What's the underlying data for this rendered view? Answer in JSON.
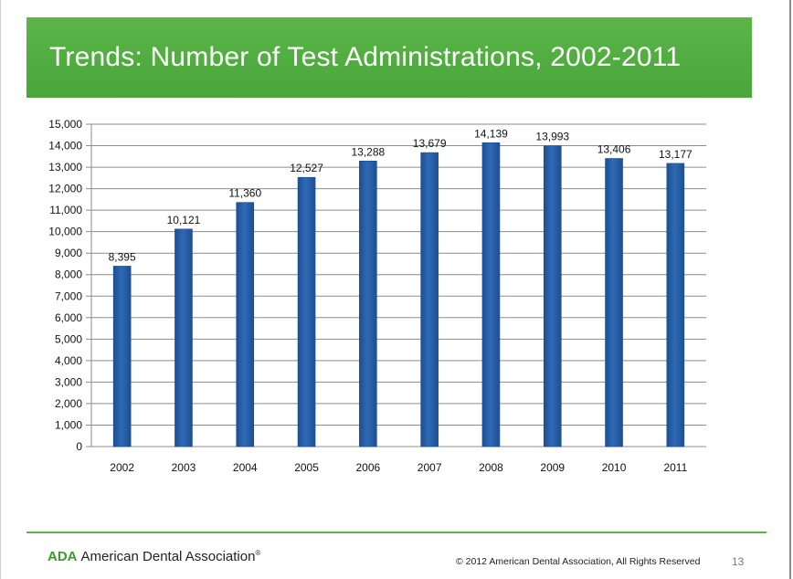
{
  "title": "Trends:  Number of Test Administrations, 2002-2011",
  "footer": {
    "logo_abbr": "ADA",
    "logo_name": "American Dental Association",
    "logo_mark": "®",
    "copyright": "© 2012 American Dental Association,  All Rights Reserved",
    "page_number": "13"
  },
  "colors": {
    "title_bar": "#4aa63b",
    "bar": "#2f6ab5",
    "bar_dark": "#1d4f93",
    "grid": "#8c8c8c"
  },
  "chart_data": {
    "type": "bar",
    "title": "",
    "xlabel": "",
    "ylabel": "",
    "categories": [
      "2002",
      "2003",
      "2004",
      "2005",
      "2006",
      "2007",
      "2008",
      "2009",
      "2010",
      "2011"
    ],
    "values": [
      8395,
      10121,
      11360,
      12527,
      13288,
      13679,
      14139,
      13993,
      13406,
      13177
    ],
    "value_labels": [
      "8,395",
      "10,121",
      "11,360",
      "12,527",
      "13,288",
      "13,679",
      "14,139",
      "13,993",
      "13,406",
      "13,177"
    ],
    "ylim": [
      0,
      15000
    ],
    "yticks": [
      0,
      1000,
      2000,
      3000,
      4000,
      5000,
      6000,
      7000,
      8000,
      9000,
      10000,
      11000,
      12000,
      13000,
      14000,
      15000
    ],
    "ytick_labels": [
      "0",
      "1,000",
      "2,000",
      "3,000",
      "4,000",
      "5,000",
      "6,000",
      "7,000",
      "8,000",
      "9,000",
      "10,000",
      "11,000",
      "12,000",
      "13,000",
      "14,000",
      "15,000"
    ],
    "grid": true,
    "legend": "none"
  }
}
